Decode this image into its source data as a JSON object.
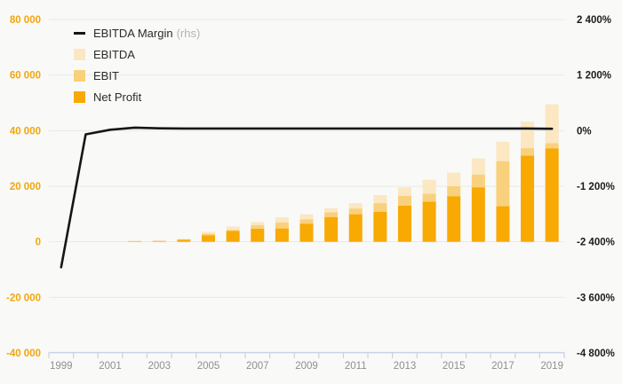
{
  "legend": {
    "items": [
      {
        "label": "EBITDA Margin",
        "suffix": "(rhs)",
        "series": "EBITDA Margin (rhs)"
      },
      {
        "label": "EBITDA",
        "suffix": "",
        "series": "EBITDA"
      },
      {
        "label": "EBIT",
        "suffix": "",
        "series": "EBIT"
      },
      {
        "label": "Net Profit",
        "suffix": "",
        "series": "Net Profit"
      }
    ]
  },
  "colors": {
    "background": "#f9f9f8",
    "line_series": "#161616",
    "ebitda": "#fbe7c2",
    "ebit": "#f9d17c",
    "net_profit": "#f8a902",
    "gridline": "#e9e9e9",
    "axis_line": "#c7d2e6",
    "left_tick_text": "#f2a60a",
    "right_tick_text": "#1c1c1c",
    "x_tick_text": "#8f8f8f"
  },
  "chart_data": {
    "type": "combo",
    "note": "Stacked bars read on left axis; EBIT and EBITDA values are cumulative bar tops (bar stacks Net Profit, then up to EBIT, then up to EBITDA). Line reads on right percent axis.",
    "categories": [
      1999,
      2000,
      2001,
      2002,
      2003,
      2004,
      2005,
      2006,
      2007,
      2008,
      2009,
      2010,
      2011,
      2012,
      2013,
      2014,
      2015,
      2016,
      2017,
      2018,
      2019
    ],
    "series": [
      {
        "name": "EBITDA Margin (rhs)",
        "type": "line",
        "axis": "right",
        "unit": "%",
        "values": [
          -2950,
          -80,
          20,
          65,
          50,
          45,
          45,
          45,
          45,
          45,
          45,
          45,
          45,
          45,
          45,
          45,
          45,
          45,
          45,
          45,
          42
        ]
      },
      {
        "name": "EBITDA",
        "type": "bar",
        "axis": "left",
        "values": [
          0,
          0,
          0,
          400,
          550,
          1100,
          3600,
          5500,
          7100,
          8800,
          9900,
          12100,
          13900,
          16800,
          19600,
          22300,
          24900,
          30000,
          36000,
          43200,
          49500
        ]
      },
      {
        "name": "EBIT",
        "type": "bar",
        "axis": "left",
        "values": [
          0,
          0,
          0,
          300,
          350,
          900,
          2900,
          4300,
          6000,
          7000,
          8100,
          10600,
          12000,
          13900,
          16500,
          17300,
          20000,
          24200,
          29000,
          33700,
          35500
        ]
      },
      {
        "name": "Net Profit",
        "type": "bar",
        "axis": "left",
        "values": [
          0,
          0,
          0,
          150,
          150,
          700,
          2300,
          3900,
          4700,
          4800,
          6500,
          8900,
          9900,
          10800,
          13000,
          14400,
          16400,
          19600,
          12800,
          31000,
          33600
        ]
      }
    ],
    "left_axis": {
      "range": [
        -40000,
        80000
      ],
      "tick_step": 20000,
      "tick_labels": [
        "80 000",
        "60 000",
        "40 000",
        "20 000",
        "0",
        "-20 000",
        "-40 000"
      ]
    },
    "right_axis": {
      "range": [
        -4800,
        2400
      ],
      "tick_step": 1200,
      "tick_labels": [
        "2 400%",
        "1 200%",
        "0%",
        "-1 200%",
        "-2 400%",
        "-3 600%",
        "-4 800%"
      ]
    },
    "x_axis": {
      "labeled_ticks": [
        "1999",
        "2001",
        "2003",
        "2005",
        "2007",
        "2009",
        "2011",
        "2013",
        "2015",
        "2017",
        "2019"
      ]
    },
    "grid": "horizontal",
    "legend_position": "top-left"
  }
}
